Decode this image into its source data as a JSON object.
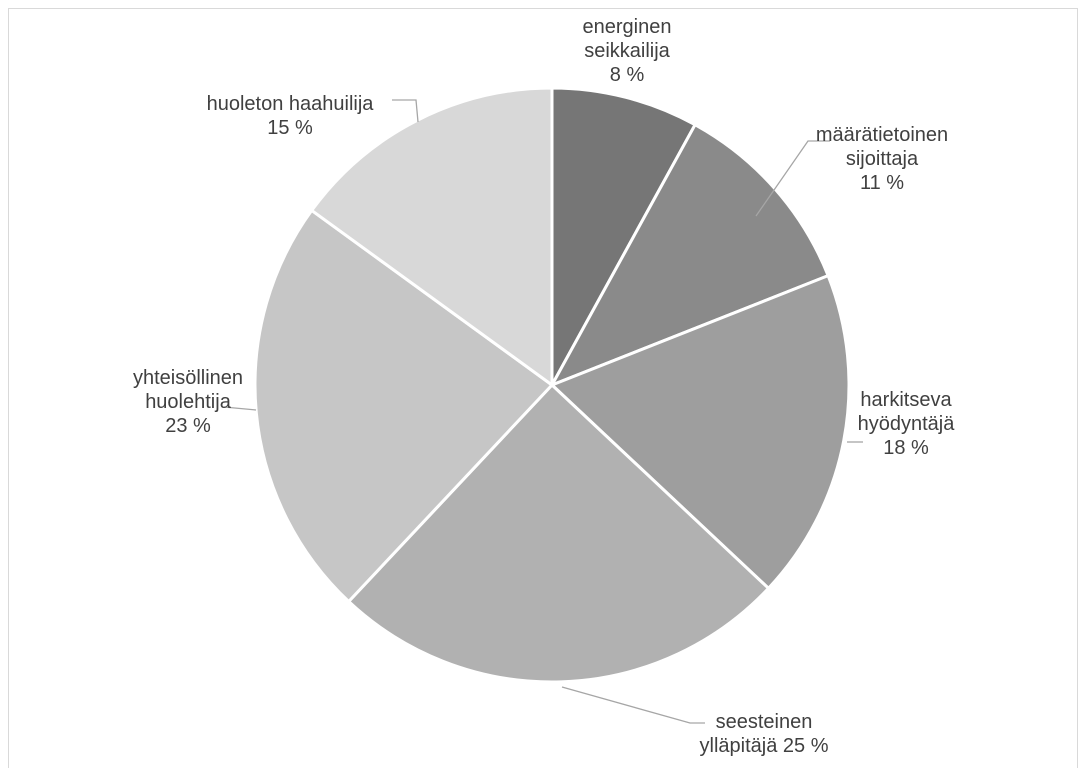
{
  "chart_data": {
    "type": "pie",
    "title": "",
    "start_angle_deg": 0,
    "direction": "clockwise",
    "slices": [
      {
        "name": "energinen seikkailija",
        "label_lines": [
          "energinen",
          "seikkailija",
          "8 %"
        ],
        "value": 8,
        "color": "#767676"
      },
      {
        "name": "määrätietoinen sijoittaja",
        "label_lines": [
          "määrätietoinen",
          "sijoittaja",
          "11 %"
        ],
        "value": 11,
        "color": "#8a8a8a"
      },
      {
        "name": "harkitseva hyödyntäjä",
        "label_lines": [
          "harkitseva",
          "hyödyntäjä",
          "18 %"
        ],
        "value": 18,
        "color": "#9e9e9e"
      },
      {
        "name": "seesteinen ylläpitäjä",
        "label_lines": [
          "seesteinen",
          "ylläpitäjä 25 %"
        ],
        "value": 25,
        "color": "#b1b1b1"
      },
      {
        "name": "yhteisöllinen huolehtija",
        "label_lines": [
          "yhteisöllinen",
          "huolehtija",
          "23 %"
        ],
        "value": 23,
        "color": "#c6c6c6"
      },
      {
        "name": "huoleton haahuilija",
        "label_lines": [
          "huoleton haahuilija",
          "15 %"
        ],
        "value": 15,
        "color": "#d8d8d8"
      }
    ],
    "data_labels": true,
    "legend": "none",
    "leader_line_color": "#a6a6a6",
    "label_color": "#404040"
  }
}
